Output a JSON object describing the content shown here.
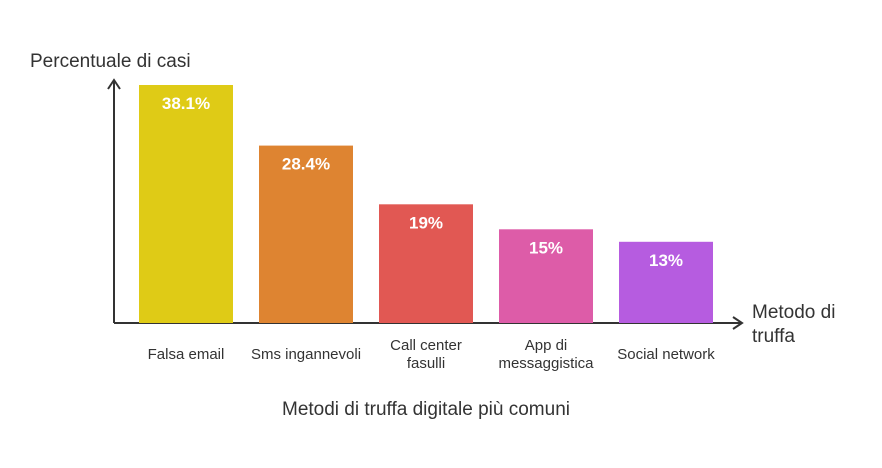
{
  "chart_data": {
    "type": "bar",
    "title": "Metodi di truffa digitale più comuni",
    "ylabel": "Percentuale di casi",
    "xlabel_lines": [
      "Metodo di",
      "truffa"
    ],
    "categories": [
      [
        "Falsa email"
      ],
      [
        "Sms ingannevoli"
      ],
      [
        "Call center",
        "fasulli"
      ],
      [
        "App di",
        "messaggistica"
      ],
      [
        "Social network"
      ]
    ],
    "values": [
      38.1,
      28.4,
      19,
      15,
      13
    ],
    "value_labels": [
      "38.1%",
      "28.4%",
      "19%",
      "15%",
      "13%"
    ],
    "colors": [
      "#dfcb16",
      "#de8431",
      "#e15853",
      "#dd5ca8",
      "#b65ce0"
    ],
    "ylim": [
      0,
      38.1
    ],
    "grid": false,
    "legend": "none"
  }
}
